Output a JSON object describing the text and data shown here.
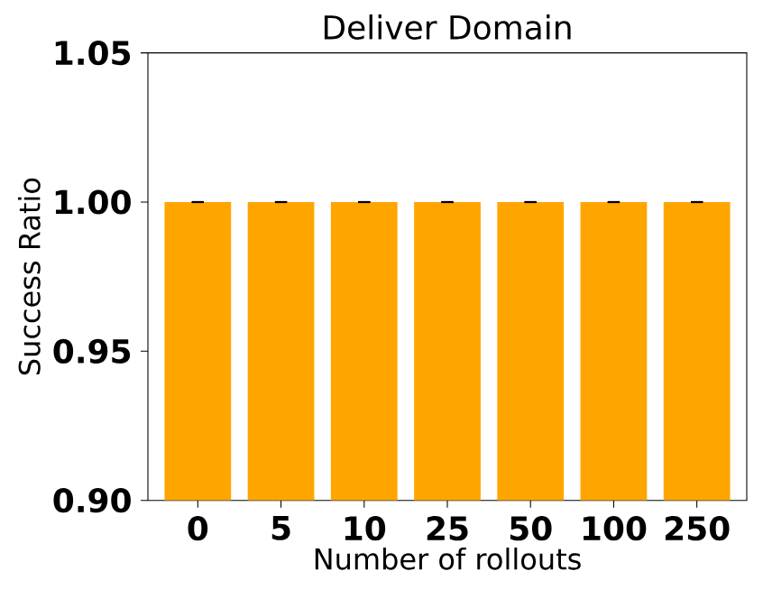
{
  "chart_data": {
    "type": "bar",
    "title": "Deliver Domain",
    "xlabel": "Number of rollouts",
    "ylabel": "Success Ratio",
    "categories": [
      "0",
      "5",
      "10",
      "25",
      "50",
      "100",
      "250"
    ],
    "values": [
      1.0,
      1.0,
      1.0,
      1.0,
      1.0,
      1.0,
      1.0
    ],
    "errors": [
      0,
      0,
      0,
      0,
      0,
      0,
      0
    ],
    "color": "#ffa500",
    "ylim": [
      0.9,
      1.05
    ],
    "yticks": [
      {
        "value": 0.9,
        "label": "0.90"
      },
      {
        "value": 0.95,
        "label": "0.95"
      },
      {
        "value": 1.0,
        "label": "1.00"
      },
      {
        "value": 1.05,
        "label": "1.05"
      }
    ],
    "grid": false
  }
}
